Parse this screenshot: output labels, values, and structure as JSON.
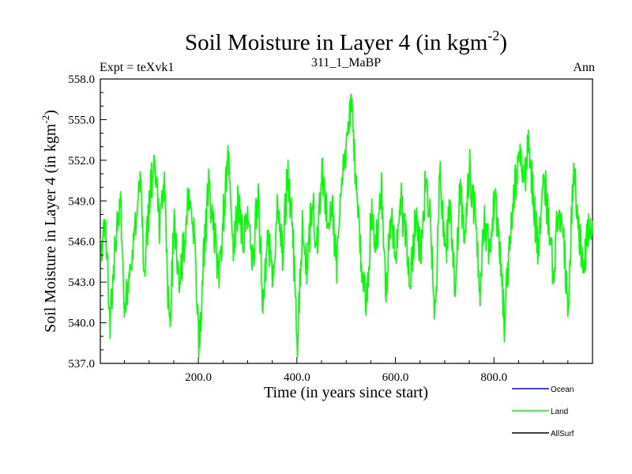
{
  "chart_data": {
    "type": "line",
    "title": "Soil Moisture in Layer 4 (in kgm",
    "title_sup": "-2",
    "title_close": ")",
    "subtitle_left": "Expt = teXvk1",
    "subtitle_center": "311_1_MaBP",
    "subtitle_right": "Ann",
    "xlabel": "Time (in years since start)",
    "ylabel": "Soil Moisture in Layer 4 (in kgm",
    "ylabel_sup": "-2",
    "ylabel_close": ")",
    "xlim": [
      1,
      1000
    ],
    "ylim": [
      537.0,
      558.0
    ],
    "xticks": [
      200,
      400,
      600,
      800
    ],
    "xtick_labels": [
      "200.0",
      "400.0",
      "600.0",
      "800.0"
    ],
    "yticks": [
      537,
      540,
      543,
      546,
      549,
      552,
      555,
      558
    ],
    "ytick_labels": [
      "537.0",
      "540.0",
      "543.0",
      "546.0",
      "549.0",
      "552.0",
      "555.0",
      "558.0"
    ],
    "series": [
      {
        "name": "Ocean",
        "color": "#0000ff",
        "values": []
      },
      {
        "name": "Land",
        "color": "#00ff00",
        "x_start": 1,
        "x_step": 10,
        "values": [
          544.5,
          547.8,
          540.2,
          545.6,
          549.3,
          541.0,
          543.8,
          547.2,
          550.6,
          544.1,
          548.9,
          552.8,
          546.3,
          550.2,
          539.3,
          547.6,
          543.0,
          545.8,
          549.7,
          547.1,
          538.2,
          544.8,
          550.4,
          546.8,
          543.5,
          547.9,
          552.4,
          545.1,
          549.0,
          546.2,
          548.6,
          544.3,
          549.8,
          541.7,
          546.4,
          543.2,
          549.6,
          545.0,
          551.2,
          547.3,
          538.1,
          546.9,
          543.9,
          549.4,
          545.6,
          551.3,
          547.6,
          548.8,
          544.1,
          550.7,
          553.4,
          556.8,
          549.5,
          544.2,
          541.5,
          548.1,
          545.7,
          550.3,
          542.7,
          547.6,
          544.6,
          549.2,
          546.0,
          542.9,
          548.4,
          545.2,
          550.1,
          547.3,
          540.5,
          551.7,
          544.9,
          548.6,
          542.1,
          549.5,
          546.6,
          551.3,
          548.0,
          542.3,
          547.5,
          545.1,
          548.9,
          546.4,
          540.1,
          545.3,
          549.6,
          552.0,
          550.2,
          553.8,
          548.4,
          545.1,
          551.6,
          547.0,
          543.3,
          549.3,
          546.0,
          541.2,
          551.4,
          547.8,
          543.5,
          546.9
        ],
        "noise_amp": 3.2
      },
      {
        "name": "AllSurf",
        "color": "#000000",
        "values": []
      }
    ],
    "legend": [
      {
        "label": "Ocean",
        "color": "#0000ff"
      },
      {
        "label": "Land",
        "color": "#00ff00"
      },
      {
        "label": "AllSurf",
        "color": "#000000"
      }
    ],
    "legend_position": "bottom-right"
  }
}
